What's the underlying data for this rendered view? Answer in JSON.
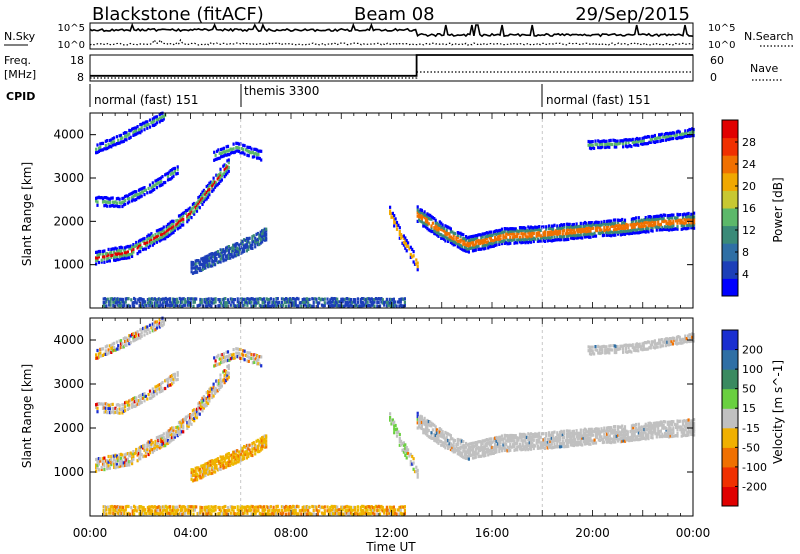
{
  "header": {
    "radar": "Blackstone (fitACF)",
    "beam": "Beam 08",
    "date": "29/Sep/2015"
  },
  "noise_panel": {
    "left_label": "N.Sky",
    "right_label": "N.Search",
    "left_ticks": [
      "10^5",
      "10^0"
    ],
    "right_ticks": [
      "10^5",
      "10^0"
    ]
  },
  "freq_panel": {
    "left_label_1": "Freq.",
    "left_label_2": "[MHz]",
    "right_label": "Nave",
    "left_ticks": [
      "18",
      "8"
    ],
    "right_ticks": [
      "60",
      "0"
    ]
  },
  "cpid": {
    "label": "CPID",
    "modes": [
      {
        "text": "normal (fast) 151",
        "start_hour": 0
      },
      {
        "text": "themis 3300",
        "start_hour": 6
      },
      {
        "text": "normal (fast) 151",
        "start_hour": 18
      }
    ]
  },
  "axes": {
    "ylabel": "Slant Range [km]",
    "yticks": [
      "1000",
      "2000",
      "3000",
      "4000"
    ],
    "xticks": [
      "00:00",
      "04:00",
      "08:00",
      "12:00",
      "16:00",
      "20:00",
      "00:00"
    ],
    "xlabel": "Time UT"
  },
  "power_colorbar": {
    "label": "Power [dB]",
    "ticks": [
      "4",
      "8",
      "12",
      "16",
      "20",
      "24",
      "28"
    ],
    "colors": [
      "#0000ff",
      "#1c3fb8",
      "#2f6fa5",
      "#3a8a78",
      "#5cb86a",
      "#c8c832",
      "#f0a800",
      "#f07000",
      "#f03000",
      "#e00000"
    ]
  },
  "velocity_colorbar": {
    "label": "Velocity [m s^-1]",
    "ticks": [
      "200",
      "100",
      "50",
      "15",
      "-15",
      "-50",
      "-100",
      "-200"
    ],
    "colors": [
      "#1a2fd0",
      "#2f6fa5",
      "#3a8a60",
      "#6ad040",
      "#c0c0c0",
      "#f0b000",
      "#f07000",
      "#f03000",
      "#e00000"
    ]
  },
  "chart_data": {
    "type": "heatmap",
    "x_range_hours": [
      0,
      24
    ],
    "y_range_km": [
      0,
      4500
    ],
    "panels": [
      "power",
      "velocity"
    ],
    "frequency_mhz_step": {
      "before_13h": 10,
      "after_13h": 18
    },
    "features": [
      {
        "name": "main_band",
        "kind": "hf",
        "points": [
          [
            0.2,
            1150
          ],
          [
            1.5,
            1280
          ],
          [
            3.0,
            1750
          ],
          [
            4.0,
            2200
          ],
          [
            4.8,
            2800
          ],
          [
            5.5,
            3300
          ]
        ],
        "width_km": 260
      },
      {
        "name": "band_2500",
        "kind": "hf",
        "points": [
          [
            0.2,
            2450
          ],
          [
            1.2,
            2420
          ],
          [
            2.5,
            2800
          ],
          [
            3.5,
            3200
          ]
        ],
        "width_km": 170
      },
      {
        "name": "band_3700",
        "kind": "hf",
        "points": [
          [
            0.2,
            3650
          ],
          [
            1.2,
            3900
          ],
          [
            2.2,
            4200
          ],
          [
            3.0,
            4450
          ]
        ],
        "width_km": 160
      },
      {
        "name": "patch_6h",
        "kind": "hf",
        "points": [
          [
            4.9,
            3500
          ],
          [
            5.8,
            3700
          ],
          [
            6.8,
            3500
          ]
        ],
        "width_km": 180
      },
      {
        "name": "patch_5h",
        "kind": "sea",
        "points": [
          [
            4.0,
            900
          ],
          [
            4.6,
            1050
          ],
          [
            5.6,
            1300
          ],
          [
            6.4,
            1500
          ],
          [
            7.0,
            1700
          ]
        ],
        "width_km": 260
      },
      {
        "name": "noon_streak",
        "kind": "hf",
        "points": [
          [
            11.9,
            2200
          ],
          [
            12.3,
            1700
          ],
          [
            12.8,
            1200
          ],
          [
            13.0,
            1000
          ]
        ],
        "width_km": 230
      },
      {
        "name": "afternoon_band",
        "kind": "hf",
        "points": [
          [
            13.0,
            2150
          ],
          [
            14.0,
            1750
          ],
          [
            15.0,
            1450
          ],
          [
            16.5,
            1650
          ],
          [
            18.0,
            1700
          ],
          [
            19.5,
            1780
          ],
          [
            21.0,
            1850
          ],
          [
            22.5,
            1950
          ],
          [
            24.0,
            2000
          ]
        ],
        "width_km": 330
      },
      {
        "name": "late_3900",
        "kind": "hf",
        "points": [
          [
            19.8,
            3750
          ],
          [
            21.5,
            3800
          ],
          [
            23.0,
            3950
          ],
          [
            24.0,
            4050
          ]
        ],
        "width_km": 140
      },
      {
        "name": "ground_scatter_low",
        "kind": "sea",
        "points": [
          [
            0.5,
            120
          ],
          [
            6.0,
            120
          ],
          [
            12.5,
            120
          ]
        ],
        "width_km": 150
      }
    ]
  }
}
